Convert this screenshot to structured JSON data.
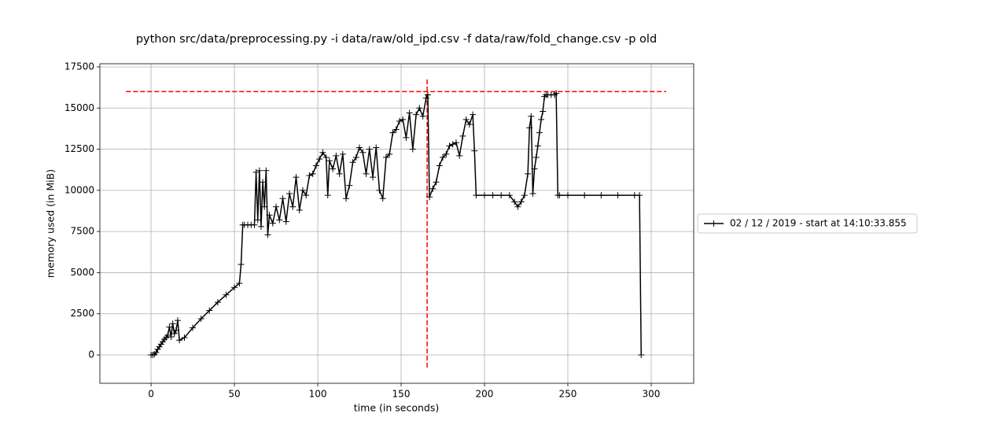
{
  "chart_data": {
    "type": "line",
    "title": "python src/data/preprocessing.py -i data/raw/old_ipd.csv -f data/raw/fold_change.csv -p old",
    "x_label": "time (in seconds)",
    "y_label": "memory used (in MiB)",
    "x": [
      0,
      1,
      2,
      3,
      4,
      5,
      6,
      7,
      8,
      9,
      10,
      11,
      12,
      13,
      14,
      15,
      16,
      17,
      20,
      25,
      30,
      35,
      40,
      45,
      50,
      53,
      54,
      55,
      56,
      58,
      60,
      62,
      63,
      64,
      65,
      66,
      67,
      68,
      69,
      70,
      71,
      73,
      75,
      77,
      79,
      81,
      83,
      85,
      87,
      89,
      91,
      93,
      95,
      97,
      99,
      101,
      103,
      105,
      106,
      107,
      109,
      111,
      113,
      115,
      117,
      119,
      121,
      123,
      125,
      127,
      129,
      131,
      133,
      135,
      137,
      139,
      141,
      143,
      145,
      147,
      149,
      151,
      153,
      155,
      157,
      159,
      161,
      163,
      165,
      166,
      167,
      169,
      171,
      173,
      175,
      177,
      179,
      181,
      183,
      185,
      187,
      189,
      191,
      193,
      194,
      195,
      200,
      205,
      210,
      215,
      218,
      220,
      222,
      224,
      226,
      227,
      228,
      229,
      230,
      231,
      232,
      233,
      234,
      235,
      236,
      237,
      238,
      240,
      242,
      243,
      244,
      245,
      250,
      260,
      270,
      280,
      290,
      293,
      294
    ],
    "series": [
      {
        "name": "02 / 12 / 2019 - start at 14:10:33.855",
        "color": "#000000",
        "values": [
          0,
          0,
          50,
          150,
          350,
          500,
          650,
          800,
          950,
          1050,
          1200,
          1700,
          1100,
          1900,
          1300,
          1500,
          2100,
          900,
          1050,
          1650,
          2200,
          2700,
          3200,
          3650,
          4100,
          4350,
          5500,
          7900,
          7900,
          7900,
          7900,
          7900,
          11100,
          8200,
          11200,
          7800,
          10500,
          9000,
          11200,
          7300,
          8500,
          8000,
          9000,
          8200,
          9500,
          8100,
          9800,
          9000,
          10800,
          8800,
          10000,
          9700,
          10900,
          11000,
          11500,
          11900,
          12300,
          12000,
          9700,
          11800,
          11300,
          12100,
          11000,
          12200,
          9500,
          10300,
          11700,
          12000,
          12600,
          12300,
          11000,
          12500,
          10800,
          12600,
          10000,
          9500,
          12000,
          12200,
          13500,
          13700,
          14200,
          14300,
          13200,
          14700,
          12500,
          14600,
          15000,
          14500,
          15600,
          15800,
          9600,
          10100,
          10500,
          11500,
          12000,
          12200,
          12700,
          12800,
          12900,
          12100,
          13300,
          14300,
          14000,
          14600,
          12400,
          9700,
          9700,
          9700,
          9700,
          9700,
          9300,
          9000,
          9300,
          9700,
          11000,
          13800,
          14500,
          9800,
          11300,
          12000,
          12700,
          13500,
          14300,
          14800,
          15700,
          15800,
          15800,
          15800,
          15800,
          15900,
          9700,
          9700,
          9700,
          9700,
          9700,
          9700,
          9700,
          9700,
          0
        ]
      }
    ],
    "hline": {
      "y": 16000,
      "xmin": -15,
      "xmax": 309,
      "color": "#ff0000"
    },
    "vline": {
      "x": 165.6,
      "ymin": -765,
      "ymax": 16830,
      "color": "#ff0000"
    },
    "xlim": [
      -30.7,
      325.5
    ],
    "xticks": [
      0,
      50,
      100,
      150,
      200,
      250,
      300
    ],
    "ylim": [
      -1720,
      17690
    ],
    "yticks": [
      0,
      2500,
      5000,
      7500,
      10000,
      12500,
      15000,
      17500
    ],
    "grid": true,
    "legend_position": "right"
  }
}
